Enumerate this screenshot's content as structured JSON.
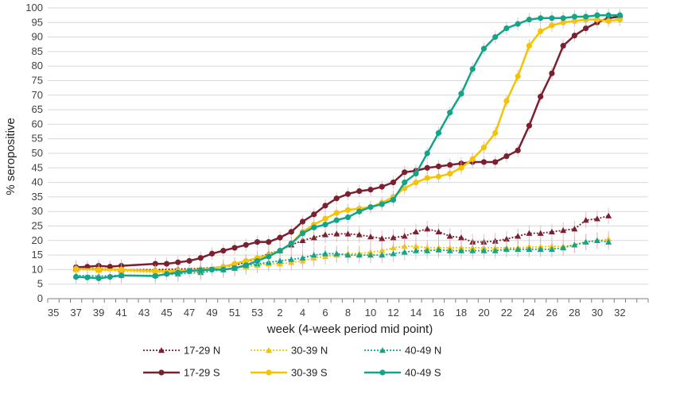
{
  "chart_data": {
    "type": "line",
    "xlabel": "week (4-week period mid point)",
    "ylabel": "% seropositive",
    "ylim": [
      0,
      100
    ],
    "yticks": [
      0,
      5,
      10,
      15,
      20,
      25,
      30,
      35,
      40,
      45,
      50,
      55,
      60,
      65,
      70,
      75,
      80,
      85,
      90,
      95,
      100
    ],
    "x_tick_labels": [
      "35",
      "37",
      "39",
      "41",
      "43",
      "45",
      "47",
      "49",
      "51",
      "53",
      "2",
      "4",
      "6",
      "8",
      "10",
      "12",
      "14",
      "16",
      "18",
      "20",
      "22",
      "24",
      "26",
      "28",
      "30",
      "32"
    ],
    "grid": "horizontal",
    "legend_position": "bottom",
    "series": [
      {
        "name": "17-29 N",
        "color": "#7b2030",
        "line": "dotted",
        "marker": "triangle",
        "points": [
          [
            37,
            10.5
          ],
          [
            39,
            10.3
          ],
          [
            41,
            10.0
          ],
          [
            44,
            10.0
          ],
          [
            46,
            10.2
          ],
          [
            48,
            10.4
          ],
          [
            50,
            11.0
          ],
          [
            51,
            11.5
          ],
          [
            52,
            12.5
          ],
          [
            53,
            14.0
          ],
          [
            1,
            15.5
          ],
          [
            2,
            16.5
          ],
          [
            3,
            18.5
          ],
          [
            4,
            20.0
          ],
          [
            5,
            21.0
          ],
          [
            6,
            22.0
          ],
          [
            7,
            22.3
          ],
          [
            8,
            22.3
          ],
          [
            9,
            22.0
          ],
          [
            10,
            21.3
          ],
          [
            11,
            20.7
          ],
          [
            12,
            21.0
          ],
          [
            13,
            21.5
          ],
          [
            14,
            23.0
          ],
          [
            15,
            24.0
          ],
          [
            16,
            23.0
          ],
          [
            17,
            21.5
          ],
          [
            18,
            21.0
          ],
          [
            19,
            19.5
          ],
          [
            20,
            19.5
          ],
          [
            21,
            19.8
          ],
          [
            22,
            20.5
          ],
          [
            23,
            21.5
          ],
          [
            24,
            22.5
          ],
          [
            25,
            22.5
          ],
          [
            26,
            23.0
          ],
          [
            27,
            23.5
          ],
          [
            28,
            24.0
          ],
          [
            29,
            27.0
          ],
          [
            30,
            27.5
          ],
          [
            31,
            28.5
          ]
        ]
      },
      {
        "name": "30-39 N",
        "color": "#f5c400",
        "line": "dotted",
        "marker": "triangle",
        "points": [
          [
            37,
            10.0
          ],
          [
            39,
            9.8
          ],
          [
            41,
            9.5
          ],
          [
            44,
            9.0
          ],
          [
            46,
            9.2
          ],
          [
            48,
            9.5
          ],
          [
            50,
            10.0
          ],
          [
            51,
            10.5
          ],
          [
            52,
            11.0
          ],
          [
            53,
            11.5
          ],
          [
            1,
            12.0
          ],
          [
            2,
            12.0
          ],
          [
            3,
            12.5
          ],
          [
            4,
            13.0
          ],
          [
            5,
            14.0
          ],
          [
            6,
            14.5
          ],
          [
            7,
            15.0
          ],
          [
            8,
            15.5
          ],
          [
            9,
            15.5
          ],
          [
            10,
            16.0
          ],
          [
            11,
            16.5
          ],
          [
            12,
            17.5
          ],
          [
            13,
            18.0
          ],
          [
            14,
            18.0
          ],
          [
            15,
            17.5
          ],
          [
            16,
            17.5
          ],
          [
            17,
            17.5
          ],
          [
            18,
            17.5
          ],
          [
            19,
            17.5
          ],
          [
            20,
            17.5
          ],
          [
            21,
            17.5
          ],
          [
            22,
            17.5
          ],
          [
            23,
            17.5
          ],
          [
            24,
            17.8
          ],
          [
            25,
            17.8
          ],
          [
            26,
            18.0
          ],
          [
            27,
            18.0
          ],
          [
            28,
            18.5
          ],
          [
            29,
            19.5
          ],
          [
            30,
            20.0
          ],
          [
            31,
            20.5
          ]
        ]
      },
      {
        "name": "40-49 N",
        "color": "#13a48a",
        "line": "dotted",
        "marker": "triangle",
        "points": [
          [
            37,
            8.0
          ],
          [
            39,
            7.8
          ],
          [
            41,
            8.0
          ],
          [
            44,
            8.0
          ],
          [
            46,
            8.5
          ],
          [
            48,
            9.0
          ],
          [
            50,
            10.0
          ],
          [
            51,
            10.5
          ],
          [
            52,
            11.5
          ],
          [
            53,
            12.0
          ],
          [
            1,
            12.5
          ],
          [
            2,
            13.0
          ],
          [
            3,
            13.5
          ],
          [
            4,
            14.0
          ],
          [
            5,
            15.0
          ],
          [
            6,
            15.5
          ],
          [
            7,
            15.5
          ],
          [
            8,
            15.0
          ],
          [
            9,
            15.0
          ],
          [
            10,
            15.0
          ],
          [
            11,
            15.0
          ],
          [
            12,
            15.5
          ],
          [
            13,
            16.0
          ],
          [
            14,
            16.5
          ],
          [
            15,
            16.5
          ],
          [
            16,
            16.8
          ],
          [
            17,
            16.5
          ],
          [
            18,
            16.5
          ],
          [
            19,
            16.5
          ],
          [
            20,
            16.5
          ],
          [
            21,
            16.5
          ],
          [
            22,
            17.0
          ],
          [
            23,
            17.0
          ],
          [
            24,
            17.0
          ],
          [
            25,
            17.0
          ],
          [
            26,
            17.0
          ],
          [
            27,
            17.5
          ],
          [
            28,
            18.5
          ],
          [
            29,
            19.5
          ],
          [
            30,
            20.0
          ],
          [
            31,
            19.5
          ]
        ]
      },
      {
        "name": "17-29 S",
        "color": "#7b2030",
        "line": "solid",
        "marker": "circle",
        "points": [
          [
            37,
            10.8
          ],
          [
            38,
            11.0
          ],
          [
            39,
            11.3
          ],
          [
            40,
            11.0
          ],
          [
            41,
            11.3
          ],
          [
            44,
            12.0
          ],
          [
            45,
            12.0
          ],
          [
            46,
            12.5
          ],
          [
            47,
            13.0
          ],
          [
            48,
            14.0
          ],
          [
            49,
            15.5
          ],
          [
            50,
            16.5
          ],
          [
            51,
            17.5
          ],
          [
            52,
            18.5
          ],
          [
            53,
            19.5
          ],
          [
            1,
            19.5
          ],
          [
            2,
            21.0
          ],
          [
            3,
            23.0
          ],
          [
            4,
            26.5
          ],
          [
            5,
            29.0
          ],
          [
            6,
            32.0
          ],
          [
            7,
            34.5
          ],
          [
            8,
            36.0
          ],
          [
            9,
            37.0
          ],
          [
            10,
            37.5
          ],
          [
            11,
            38.5
          ],
          [
            12,
            40.0
          ],
          [
            13,
            43.5
          ],
          [
            14,
            44.0
          ],
          [
            15,
            45.0
          ],
          [
            16,
            45.5
          ],
          [
            17,
            46.0
          ],
          [
            18,
            46.5
          ],
          [
            19,
            47.0
          ],
          [
            20,
            47.0
          ],
          [
            21,
            47.0
          ],
          [
            22,
            49.0
          ],
          [
            23,
            51.0
          ],
          [
            24,
            59.5
          ],
          [
            25,
            69.5
          ],
          [
            26,
            77.5
          ],
          [
            27,
            87.0
          ],
          [
            28,
            90.5
          ],
          [
            29,
            93.0
          ],
          [
            30,
            95.0
          ],
          [
            31,
            96.5
          ],
          [
            32,
            97.0
          ]
        ]
      },
      {
        "name": "30-39 S",
        "color": "#f5c400",
        "line": "solid",
        "marker": "circle",
        "points": [
          [
            37,
            10.3
          ],
          [
            39,
            10.0
          ],
          [
            41,
            10.0
          ],
          [
            44,
            9.5
          ],
          [
            46,
            9.5
          ],
          [
            48,
            10.0
          ],
          [
            50,
            11.0
          ],
          [
            51,
            12.0
          ],
          [
            52,
            13.0
          ],
          [
            53,
            14.0
          ],
          [
            1,
            15.0
          ],
          [
            2,
            16.5
          ],
          [
            3,
            19.0
          ],
          [
            4,
            23.0
          ],
          [
            5,
            25.5
          ],
          [
            6,
            27.5
          ],
          [
            7,
            29.5
          ],
          [
            8,
            30.5
          ],
          [
            9,
            31.0
          ],
          [
            10,
            31.5
          ],
          [
            11,
            33.0
          ],
          [
            12,
            35.0
          ],
          [
            13,
            38.0
          ],
          [
            14,
            40.0
          ],
          [
            15,
            41.5
          ],
          [
            16,
            42.0
          ],
          [
            17,
            43.0
          ],
          [
            18,
            45.0
          ],
          [
            19,
            48.0
          ],
          [
            20,
            52.0
          ],
          [
            21,
            57.0
          ],
          [
            22,
            68.0
          ],
          [
            23,
            76.5
          ],
          [
            24,
            87.0
          ],
          [
            25,
            92.0
          ],
          [
            26,
            94.0
          ],
          [
            27,
            95.0
          ],
          [
            28,
            95.5
          ],
          [
            29,
            96.0
          ],
          [
            30,
            96.0
          ],
          [
            31,
            95.5
          ],
          [
            32,
            96.0
          ]
        ]
      },
      {
        "name": "40-49 S",
        "color": "#13a48a",
        "line": "solid",
        "marker": "circle",
        "points": [
          [
            37,
            7.5
          ],
          [
            38,
            7.3
          ],
          [
            39,
            7.0
          ],
          [
            40,
            7.5
          ],
          [
            41,
            8.0
          ],
          [
            44,
            7.8
          ],
          [
            45,
            8.5
          ],
          [
            46,
            9.0
          ],
          [
            47,
            9.5
          ],
          [
            48,
            9.8
          ],
          [
            49,
            10.0
          ],
          [
            50,
            10.0
          ],
          [
            51,
            10.5
          ],
          [
            52,
            11.5
          ],
          [
            53,
            13.0
          ],
          [
            1,
            14.5
          ],
          [
            2,
            16.5
          ],
          [
            3,
            19.0
          ],
          [
            4,
            22.5
          ],
          [
            5,
            24.5
          ],
          [
            6,
            25.5
          ],
          [
            7,
            27.0
          ],
          [
            8,
            28.0
          ],
          [
            9,
            30.0
          ],
          [
            10,
            31.5
          ],
          [
            11,
            32.5
          ],
          [
            12,
            34.0
          ],
          [
            13,
            40.0
          ],
          [
            14,
            43.0
          ],
          [
            15,
            50.0
          ],
          [
            16,
            57.0
          ],
          [
            17,
            64.0
          ],
          [
            18,
            70.5
          ],
          [
            19,
            79.0
          ],
          [
            20,
            86.0
          ],
          [
            21,
            90.0
          ],
          [
            22,
            93.0
          ],
          [
            23,
            94.5
          ],
          [
            24,
            96.0
          ],
          [
            25,
            96.5
          ],
          [
            26,
            96.5
          ],
          [
            27,
            96.5
          ],
          [
            28,
            97.0
          ],
          [
            29,
            97.0
          ],
          [
            30,
            97.5
          ],
          [
            31,
            97.5
          ],
          [
            32,
            97.5
          ]
        ]
      }
    ]
  }
}
